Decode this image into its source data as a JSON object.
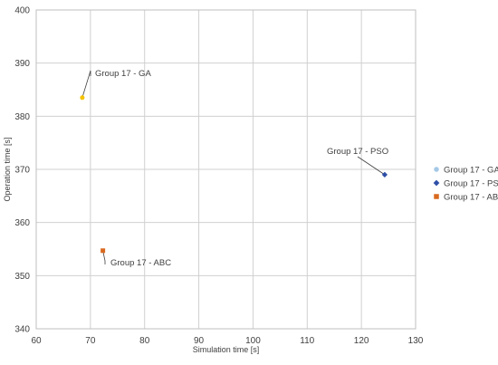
{
  "chart_data": {
    "type": "scatter",
    "xlabel": "Simulation time [s]",
    "ylabel": "Operation time [s]",
    "xlim": [
      60,
      130
    ],
    "ylim": [
      340,
      400
    ],
    "x_ticks": [
      60,
      70,
      80,
      90,
      100,
      110,
      120,
      130
    ],
    "y_ticks": [
      340,
      350,
      360,
      370,
      380,
      390,
      400
    ],
    "grid": true,
    "legend_position": "right",
    "series": [
      {
        "name": "Group 17 - GA",
        "marker": "circle",
        "color": "#f5c200",
        "legend_color": "#a5c8e6",
        "points": [
          {
            "x": 68.5,
            "y": 383.5
          }
        ],
        "label": "Group 17 - GA"
      },
      {
        "name": "Group 17 - PSO",
        "marker": "diamond",
        "color": "#2e4fa8",
        "legend_color": "#2e4fa8",
        "points": [
          {
            "x": 124.3,
            "y": 369.0
          }
        ],
        "label": "Group 17 - PSO"
      },
      {
        "name": "Group 17 - ABC",
        "marker": "square",
        "color": "#d9691e",
        "legend_color": "#d9691e",
        "points": [
          {
            "x": 72.3,
            "y": 354.7
          }
        ],
        "label": "Group 17 - ABC"
      }
    ]
  }
}
